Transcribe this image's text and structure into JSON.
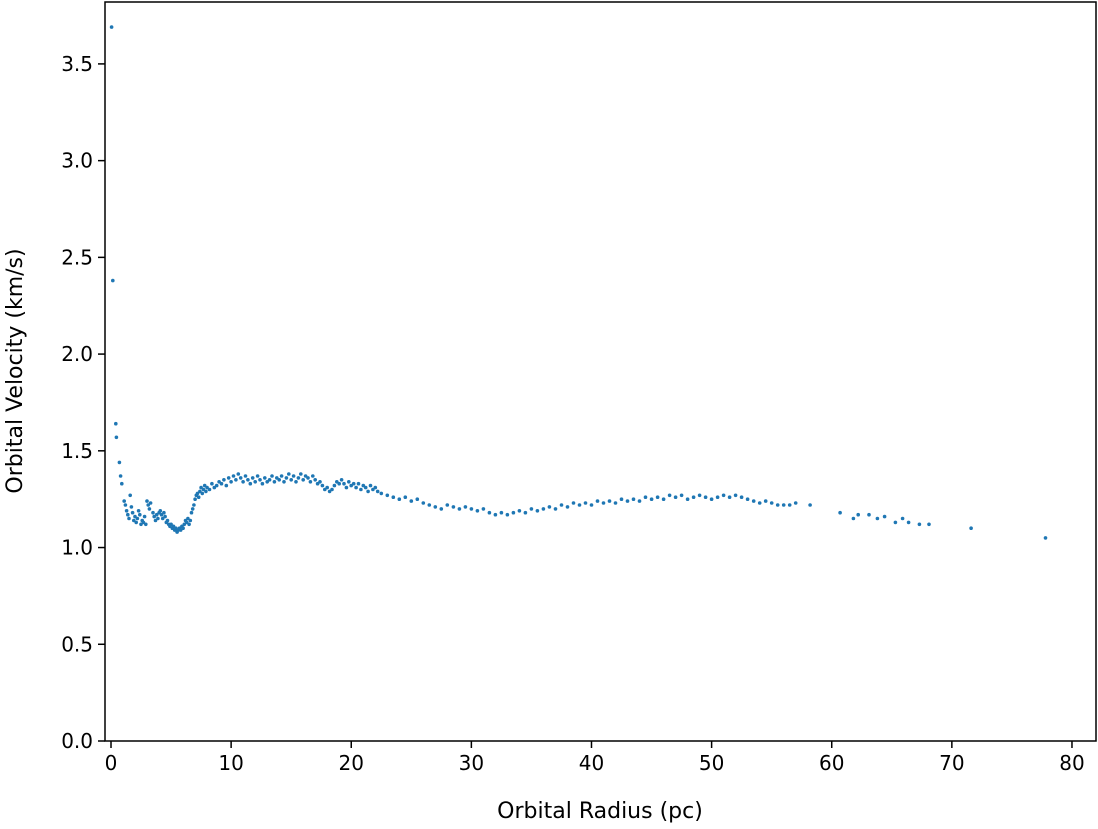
{
  "chart_data": {
    "type": "scatter",
    "title": "",
    "xlabel": "Orbital Radius (pc)",
    "ylabel": "Orbital Velocity (km/s)",
    "xlim": [
      -0.5,
      82
    ],
    "ylim": [
      0.0,
      3.82
    ],
    "xticks": [
      "0",
      "10",
      "20",
      "30",
      "40",
      "50",
      "60",
      "70",
      "80"
    ],
    "yticks": [
      "0.0",
      "0.5",
      "1.0",
      "1.5",
      "2.0",
      "2.5",
      "3.0",
      "3.5"
    ],
    "grid": false,
    "marker_color": "#1f77b4",
    "series": [
      {
        "points": [
          [
            0.05,
            3.69
          ],
          [
            0.15,
            2.38
          ],
          [
            0.4,
            1.64
          ],
          [
            0.45,
            1.57
          ],
          [
            0.7,
            1.44
          ],
          [
            0.8,
            1.37
          ],
          [
            0.9,
            1.33
          ],
          [
            1.1,
            1.24
          ],
          [
            1.2,
            1.22
          ],
          [
            1.3,
            1.19
          ],
          [
            1.4,
            1.17
          ],
          [
            1.5,
            1.15
          ],
          [
            1.6,
            1.27
          ],
          [
            1.7,
            1.21
          ],
          [
            1.8,
            1.18
          ],
          [
            1.9,
            1.14
          ],
          [
            2.0,
            1.16
          ],
          [
            2.1,
            1.13
          ],
          [
            2.2,
            1.15
          ],
          [
            2.3,
            1.19
          ],
          [
            2.4,
            1.17
          ],
          [
            2.5,
            1.12
          ],
          [
            2.6,
            1.14
          ],
          [
            2.7,
            1.13
          ],
          [
            2.8,
            1.16
          ],
          [
            2.9,
            1.12
          ],
          [
            3.0,
            1.24
          ],
          [
            3.1,
            1.22
          ],
          [
            3.2,
            1.2
          ],
          [
            3.3,
            1.23
          ],
          [
            3.5,
            1.18
          ],
          [
            3.6,
            1.16
          ],
          [
            3.7,
            1.14
          ],
          [
            3.8,
            1.17
          ],
          [
            3.9,
            1.15
          ],
          [
            4.0,
            1.18
          ],
          [
            4.1,
            1.19
          ],
          [
            4.2,
            1.17
          ],
          [
            4.3,
            1.15
          ],
          [
            4.4,
            1.18
          ],
          [
            4.5,
            1.16
          ],
          [
            4.6,
            1.13
          ],
          [
            4.7,
            1.14
          ],
          [
            4.8,
            1.12
          ],
          [
            4.9,
            1.11
          ],
          [
            5.0,
            1.12
          ],
          [
            5.1,
            1.1
          ],
          [
            5.2,
            1.11
          ],
          [
            5.3,
            1.09
          ],
          [
            5.4,
            1.1
          ],
          [
            5.5,
            1.08
          ],
          [
            5.6,
            1.09
          ],
          [
            5.7,
            1.1
          ],
          [
            5.8,
            1.09
          ],
          [
            5.9,
            1.11
          ],
          [
            6.0,
            1.1
          ],
          [
            6.1,
            1.12
          ],
          [
            6.2,
            1.14
          ],
          [
            6.3,
            1.13
          ],
          [
            6.4,
            1.15
          ],
          [
            6.5,
            1.12
          ],
          [
            6.6,
            1.14
          ],
          [
            6.7,
            1.18
          ],
          [
            6.8,
            1.2
          ],
          [
            6.9,
            1.22
          ],
          [
            7.0,
            1.25
          ],
          [
            7.1,
            1.27
          ],
          [
            7.2,
            1.28
          ],
          [
            7.3,
            1.26
          ],
          [
            7.4,
            1.29
          ],
          [
            7.5,
            1.31
          ],
          [
            7.6,
            1.28
          ],
          [
            7.7,
            1.3
          ],
          [
            7.8,
            1.32
          ],
          [
            7.9,
            1.29
          ],
          [
            8.0,
            1.31
          ],
          [
            8.2,
            1.3
          ],
          [
            8.4,
            1.33
          ],
          [
            8.6,
            1.31
          ],
          [
            8.8,
            1.32
          ],
          [
            9.0,
            1.34
          ],
          [
            9.2,
            1.33
          ],
          [
            9.4,
            1.35
          ],
          [
            9.6,
            1.32
          ],
          [
            9.8,
            1.36
          ],
          [
            10.0,
            1.34
          ],
          [
            10.2,
            1.37
          ],
          [
            10.4,
            1.35
          ],
          [
            10.6,
            1.38
          ],
          [
            10.8,
            1.36
          ],
          [
            11.0,
            1.34
          ],
          [
            11.2,
            1.37
          ],
          [
            11.4,
            1.35
          ],
          [
            11.6,
            1.33
          ],
          [
            11.8,
            1.36
          ],
          [
            12.0,
            1.34
          ],
          [
            12.2,
            1.37
          ],
          [
            12.4,
            1.35
          ],
          [
            12.6,
            1.33
          ],
          [
            12.8,
            1.36
          ],
          [
            13.0,
            1.34
          ],
          [
            13.2,
            1.35
          ],
          [
            13.4,
            1.37
          ],
          [
            13.6,
            1.34
          ],
          [
            13.8,
            1.36
          ],
          [
            14.0,
            1.35
          ],
          [
            14.2,
            1.37
          ],
          [
            14.4,
            1.34
          ],
          [
            14.6,
            1.36
          ],
          [
            14.8,
            1.38
          ],
          [
            15.0,
            1.35
          ],
          [
            15.2,
            1.37
          ],
          [
            15.4,
            1.34
          ],
          [
            15.6,
            1.36
          ],
          [
            15.8,
            1.38
          ],
          [
            16.0,
            1.35
          ],
          [
            16.2,
            1.37
          ],
          [
            16.4,
            1.36
          ],
          [
            16.6,
            1.34
          ],
          [
            16.8,
            1.37
          ],
          [
            17.0,
            1.35
          ],
          [
            17.2,
            1.33
          ],
          [
            17.4,
            1.34
          ],
          [
            17.6,
            1.32
          ],
          [
            17.8,
            1.3
          ],
          [
            18.0,
            1.31
          ],
          [
            18.2,
            1.29
          ],
          [
            18.4,
            1.3
          ],
          [
            18.6,
            1.32
          ],
          [
            18.8,
            1.34
          ],
          [
            19.0,
            1.33
          ],
          [
            19.2,
            1.35
          ],
          [
            19.4,
            1.33
          ],
          [
            19.6,
            1.31
          ],
          [
            19.8,
            1.34
          ],
          [
            20.0,
            1.32
          ],
          [
            20.2,
            1.33
          ],
          [
            20.4,
            1.31
          ],
          [
            20.6,
            1.33
          ],
          [
            20.8,
            1.3
          ],
          [
            21.0,
            1.32
          ],
          [
            21.2,
            1.31
          ],
          [
            21.4,
            1.29
          ],
          [
            21.6,
            1.32
          ],
          [
            21.8,
            1.3
          ],
          [
            22.0,
            1.31
          ],
          [
            22.2,
            1.29
          ],
          [
            22.5,
            1.28
          ],
          [
            23.0,
            1.27
          ],
          [
            23.5,
            1.26
          ],
          [
            24.0,
            1.25
          ],
          [
            24.5,
            1.26
          ],
          [
            25.0,
            1.24
          ],
          [
            25.5,
            1.25
          ],
          [
            26.0,
            1.23
          ],
          [
            26.5,
            1.22
          ],
          [
            27.0,
            1.21
          ],
          [
            27.5,
            1.2
          ],
          [
            28.0,
            1.22
          ],
          [
            28.5,
            1.21
          ],
          [
            29.0,
            1.2
          ],
          [
            29.5,
            1.21
          ],
          [
            30.0,
            1.2
          ],
          [
            30.5,
            1.19
          ],
          [
            31.0,
            1.2
          ],
          [
            31.5,
            1.18
          ],
          [
            32.0,
            1.17
          ],
          [
            32.5,
            1.18
          ],
          [
            33.0,
            1.17
          ],
          [
            33.5,
            1.18
          ],
          [
            34.0,
            1.19
          ],
          [
            34.5,
            1.18
          ],
          [
            35.0,
            1.2
          ],
          [
            35.5,
            1.19
          ],
          [
            36.0,
            1.2
          ],
          [
            36.5,
            1.21
          ],
          [
            37.0,
            1.2
          ],
          [
            37.5,
            1.22
          ],
          [
            38.0,
            1.21
          ],
          [
            38.5,
            1.23
          ],
          [
            39.0,
            1.22
          ],
          [
            39.5,
            1.23
          ],
          [
            40.0,
            1.22
          ],
          [
            40.5,
            1.24
          ],
          [
            41.0,
            1.23
          ],
          [
            41.5,
            1.24
          ],
          [
            42.0,
            1.23
          ],
          [
            42.5,
            1.25
          ],
          [
            43.0,
            1.24
          ],
          [
            43.5,
            1.25
          ],
          [
            44.0,
            1.24
          ],
          [
            44.5,
            1.26
          ],
          [
            45.0,
            1.25
          ],
          [
            45.5,
            1.26
          ],
          [
            46.0,
            1.25
          ],
          [
            46.5,
            1.27
          ],
          [
            47.0,
            1.26
          ],
          [
            47.5,
            1.27
          ],
          [
            48.0,
            1.25
          ],
          [
            48.5,
            1.26
          ],
          [
            49.0,
            1.27
          ],
          [
            49.5,
            1.26
          ],
          [
            50.0,
            1.25
          ],
          [
            50.5,
            1.26
          ],
          [
            51.0,
            1.27
          ],
          [
            51.5,
            1.26
          ],
          [
            52.0,
            1.27
          ],
          [
            52.5,
            1.26
          ],
          [
            53.0,
            1.25
          ],
          [
            53.5,
            1.24
          ],
          [
            54.0,
            1.23
          ],
          [
            54.5,
            1.24
          ],
          [
            55.0,
            1.23
          ],
          [
            55.5,
            1.22
          ],
          [
            56.0,
            1.22
          ],
          [
            56.5,
            1.22
          ],
          [
            57.0,
            1.23
          ],
          [
            58.2,
            1.22
          ],
          [
            60.7,
            1.18
          ],
          [
            61.8,
            1.15
          ],
          [
            62.2,
            1.17
          ],
          [
            63.1,
            1.17
          ],
          [
            63.8,
            1.15
          ],
          [
            64.4,
            1.16
          ],
          [
            65.3,
            1.13
          ],
          [
            65.9,
            1.15
          ],
          [
            66.4,
            1.13
          ],
          [
            67.3,
            1.12
          ],
          [
            68.1,
            1.12
          ],
          [
            71.6,
            1.1
          ],
          [
            77.8,
            1.05
          ]
        ]
      }
    ]
  }
}
